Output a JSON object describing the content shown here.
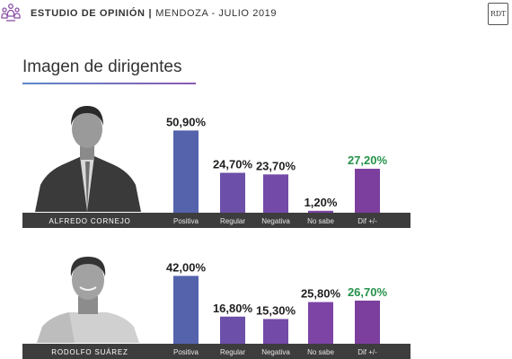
{
  "header": {
    "title_strong": "ESTUDIO DE OPINIÓN",
    "separator": "|",
    "subtitle": "MENDOZA - JULIO 2019",
    "badge": "RDT"
  },
  "section": {
    "title": "Imagen de dirigentes"
  },
  "colors": {
    "Positiva": "#5563ad",
    "Regular": "#6c4fa8",
    "Negativa": "#744aa8",
    "No sabe": "#7d44a6",
    "Dif +/-": "#7c3f9d",
    "value_text": "#1f1f1f",
    "diff_text": "#25924a",
    "strip": "#3d3d3d"
  },
  "chart_data": [
    {
      "type": "bar",
      "person": "ALFREDO CORNEJO",
      "categories": [
        "Positiva",
        "Regular",
        "Negativa",
        "No sabe",
        "Dif +/-"
      ],
      "values": [
        50.9,
        24.7,
        23.7,
        1.2,
        27.2
      ],
      "labels": [
        "50,90%",
        "24,70%",
        "23,70%",
        "1,20%",
        "27,20%"
      ]
    },
    {
      "type": "bar",
      "person": "RODOLFO SUÁREZ",
      "categories": [
        "Positiva",
        "Regular",
        "Negativa",
        "No sabe",
        "Dif +/-"
      ],
      "values": [
        42.0,
        16.8,
        15.3,
        25.8,
        26.7
      ],
      "labels": [
        "42,00%",
        "16,80%",
        "15,30%",
        "25,80%",
        "26,70%"
      ]
    }
  ]
}
